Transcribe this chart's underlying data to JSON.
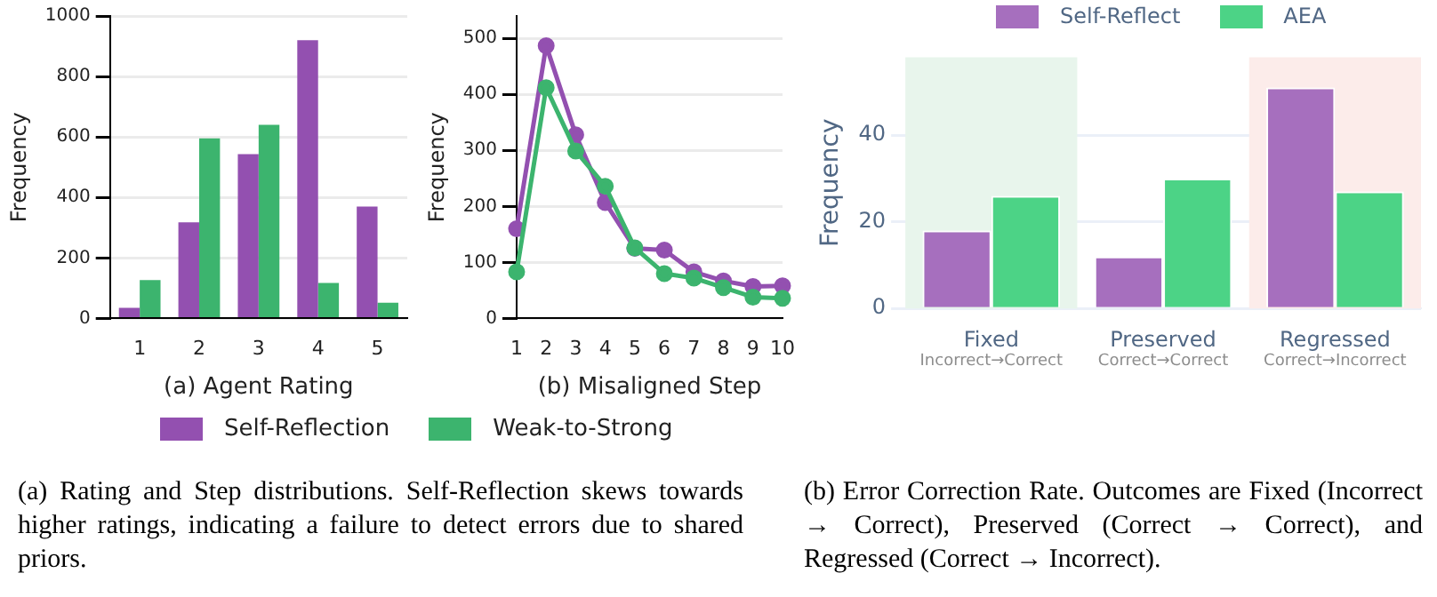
{
  "chart_data": [
    {
      "type": "bar",
      "xlabel": "(a) Agent Rating",
      "ylabel": "Frequency",
      "categories": [
        "1",
        "2",
        "3",
        "4",
        "5"
      ],
      "series": [
        {
          "name": "Self-Reflection",
          "color": "#9350b0",
          "values": [
            35,
            318,
            543,
            920,
            370
          ]
        },
        {
          "name": "Weak-to-Strong",
          "color": "#3cb46e",
          "values": [
            127,
            595,
            640,
            117,
            52
          ]
        }
      ],
      "ylim": [
        0,
        1000
      ],
      "yticks": [
        0,
        200,
        400,
        600,
        800,
        1000
      ],
      "grid": "y",
      "legend": "bottom",
      "annotations": [
        "(a) Rating and Step distributions. Self-Reflection skews towards higher ratings, indicating a failure to detect errors due to shared priors."
      ]
    },
    {
      "type": "line",
      "xlabel": "(b) Misaligned Step",
      "ylabel": "Frequency",
      "categories": [
        "1",
        "2",
        "3",
        "4",
        "5",
        "6",
        "7",
        "8",
        "9",
        "10"
      ],
      "series": [
        {
          "color": "#9350b0",
          "values": [
            160,
            487,
            328,
            207,
            125,
            122,
            83,
            67,
            57,
            58
          ]
        },
        {
          "color": "#3cb46e",
          "values": [
            83,
            412,
            299,
            236,
            126,
            80,
            72,
            55,
            38,
            36
          ]
        }
      ],
      "ylim": [
        0,
        540
      ],
      "yticks": [
        0,
        100,
        200,
        300,
        400,
        500
      ],
      "grid": "y",
      "marker": "circle"
    },
    {
      "type": "bar",
      "ylabel": "Frequency",
      "categories": [
        "Fixed",
        "Preserved",
        "Regressed"
      ],
      "series": [
        {
          "name": "Self-Reflect",
          "color": "#a66fbe",
          "values": [
            18,
            12,
            51
          ]
        },
        {
          "name": "AEA",
          "color": "#4cd386",
          "values": [
            26,
            30,
            27
          ]
        }
      ],
      "ylim": [
        0,
        58
      ],
      "yticks": [
        0,
        20,
        40
      ],
      "grid": "y",
      "legend": "top",
      "bands": [
        {
          "axis": "x",
          "from": "Fixed",
          "to": "Fixed",
          "color": "#e8f5ec"
        },
        {
          "axis": "x",
          "from": "Regressed",
          "to": "Regressed",
          "color": "#fcecea"
        }
      ],
      "annotations": [
        "Incorrect→Correct",
        "Correct→Correct",
        "Correct→Incorrect",
        "(b) Error Correction Rate. Outcomes are Fixed (Incorrect → Correct), Preserved (Correct → Correct), and Regressed (Correct → Incorrect)."
      ]
    }
  ]
}
